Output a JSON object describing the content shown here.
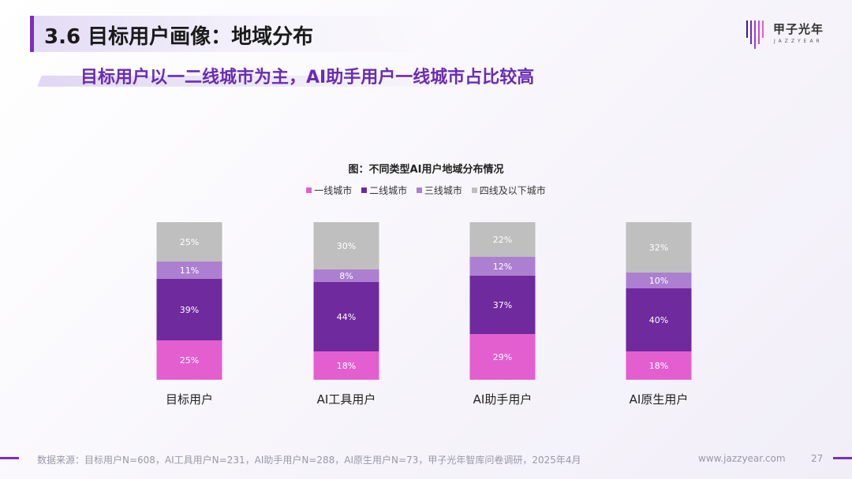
{
  "header": {
    "title": "3.6 目标用户画像：地域分布",
    "subtitle": "目标用户以一二线城市为主，AI助手用户一线城市占比较高"
  },
  "logo": {
    "cn": "甲子光年",
    "en": "JAZZYEAR",
    "icon": "jazzyear-logo-mark"
  },
  "colors": {
    "accent": "#7b2fbf",
    "tier1": "#e35fcf",
    "tier2": "#6f2a9e",
    "tier3": "#ad7fd0",
    "tier4": "#c0bfc0"
  },
  "chart_data": {
    "type": "bar",
    "stacked": true,
    "title": "图：不同类型AI用户地域分布情况",
    "legend_position": "top",
    "categories": [
      "目标用户",
      "AI工具用户",
      "AI助手用户",
      "AI原生用户"
    ],
    "series": [
      {
        "name": "一线城市",
        "color": "#e35fcf",
        "values": [
          25,
          18,
          29,
          18
        ],
        "labels": [
          "25%",
          "18%",
          "29%",
          "18%"
        ]
      },
      {
        "name": "二线城市",
        "color": "#6f2a9e",
        "values": [
          39,
          44,
          37,
          40
        ],
        "labels": [
          "39%",
          "44%",
          "37%",
          "40%"
        ]
      },
      {
        "name": "三线城市",
        "color": "#ad7fd0",
        "values": [
          11,
          8,
          12,
          10
        ],
        "labels": [
          "11%",
          "8%",
          "12%",
          "10%"
        ]
      },
      {
        "name": "四线及以下城市",
        "color": "#c0bfc0",
        "values": [
          25,
          30,
          22,
          32
        ],
        "labels": [
          "25%",
          "30%",
          "22%",
          "32%"
        ]
      }
    ],
    "ylim": [
      0,
      100
    ],
    "grid": false
  },
  "footer": {
    "source": "数据来源：目标用户N=608，AI工具用户N=231，AI助手用户N=288，AI原生用户N=73，甲子光年智库问卷调研，2025年4月",
    "url": "www.jazzyear.com",
    "page": "27"
  }
}
